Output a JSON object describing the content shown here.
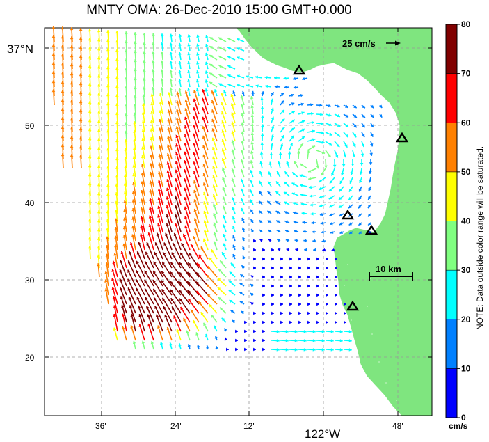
{
  "title": "MNTY OMA: 26-Dec-2010 15:00 GMT+0.000",
  "axes": {
    "lat_labels": [
      "37°N",
      "50'",
      "40'",
      "30'",
      "20'"
    ],
    "lon_labels": [
      "36'",
      "24'",
      "12'",
      "122°W",
      "48'"
    ]
  },
  "scale_vector_label": "25 cm/s",
  "scale_bar_label": "10 km",
  "colorbar": {
    "ticks": [
      "0",
      "10",
      "20",
      "30",
      "40",
      "50",
      "60",
      "70",
      "80"
    ],
    "unit": "cm/s",
    "note": "NOTE: Data outside color range will be saturated.",
    "colors": [
      "#0000ff",
      "#0080ff",
      "#00ffff",
      "#80ff80",
      "#ffff00",
      "#ff8000",
      "#ff0000",
      "#800000"
    ]
  },
  "colors": {
    "land": "#7fe57f",
    "background": "#ffffff",
    "grid": "#999999"
  },
  "icons": [
    "triangle-station-icon"
  ]
}
